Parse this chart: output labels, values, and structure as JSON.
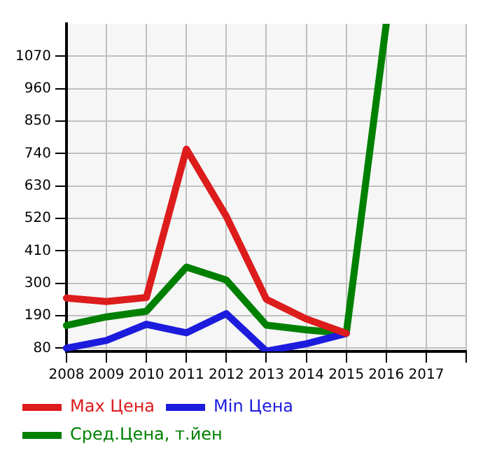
{
  "chart_data": {
    "type": "line",
    "categories": [
      "2008",
      "2009",
      "2010",
      "2011",
      "2012",
      "2013",
      "2014",
      "2015",
      "2016",
      "2017",
      null
    ],
    "ylim": [
      69,
      1180
    ],
    "yticks": [
      80,
      190,
      300,
      410,
      520,
      630,
      740,
      850,
      960,
      1070
    ],
    "grid": true,
    "legend": "bottom",
    "marker": "none",
    "line_style": "solid",
    "series": [
      {
        "name": "Max Цена",
        "color": "#dd1c1c",
        "values": [
          250,
          238,
          252,
          755,
          527,
          246,
          179,
          130,
          null,
          null,
          null
        ]
      },
      {
        "name": "Min Цена",
        "color": "#1c1cdd",
        "values": [
          80,
          106,
          161,
          132,
          197,
          70,
          95,
          130,
          null,
          null,
          null
        ]
      },
      {
        "name": "Сред.Цена, т.йен",
        "color": "#008000",
        "values": [
          157,
          186,
          205,
          355,
          311,
          158,
          142,
          130,
          1180,
          null,
          null
        ]
      }
    ]
  }
}
